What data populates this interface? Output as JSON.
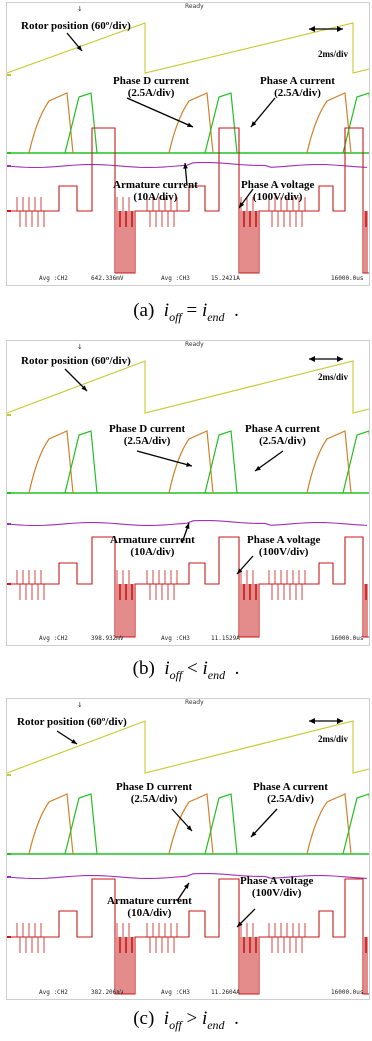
{
  "chart_data": [
    {
      "type": "line",
      "title": "",
      "labels": {
        "rotor": "Rotor position (60º/div)",
        "scale": "2ms/div",
        "phase_d_1": "Phase D current",
        "phase_d_2": "(2.5A/div)",
        "phase_a_1": "Phase A current",
        "phase_a_2": "(2.5A/div)",
        "arm_1": "Armature current",
        "arm_2": "(10A/div)",
        "va_1": "Phase A voltage",
        "va_2": "(100V/div)"
      },
      "status": {
        "ch_a": "Avg :CH2",
        "val_a": "642.336mV",
        "ch_b": "Avg :CH3",
        "val_b": "15.2421A",
        "time": "16000.0us",
        "top": "Ready"
      },
      "caption": {
        "prefix": "(a)",
        "var": "i",
        "sub1": "off",
        "op": "=",
        "sub2": "end"
      },
      "series": [
        {
          "name": "Rotor position",
          "color": "#c8c832"
        },
        {
          "name": "Phase D current",
          "color": "#d2802a"
        },
        {
          "name": "Phase A current",
          "color": "#22c022"
        },
        {
          "name": "Armature current",
          "color": "#a030b8"
        },
        {
          "name": "Phase A voltage",
          "color": "#c81818"
        }
      ]
    },
    {
      "type": "line",
      "title": "",
      "labels": {
        "rotor": "Rotor position (60º/div)",
        "scale": "2ms/div",
        "phase_d_1": "Phase D current",
        "phase_d_2": "(2.5A/div)",
        "phase_a_1": "Phase A current",
        "phase_a_2": "(2.5A/div)",
        "arm_1": "Armature current",
        "arm_2": "(10A/div)",
        "va_1": "Phase A voltage",
        "va_2": "(100V/div)"
      },
      "status": {
        "ch_a": "Avg :CH2",
        "val_a": "398.932mV",
        "ch_b": "Avg :CH3",
        "val_b": "11.1529A",
        "time": "16000.0us",
        "top": "Ready"
      },
      "caption": {
        "prefix": "(b)",
        "var": "i",
        "sub1": "off",
        "op": "<",
        "sub2": "end"
      },
      "series": [
        {
          "name": "Rotor position",
          "color": "#c8c832"
        },
        {
          "name": "Phase D current",
          "color": "#d2802a"
        },
        {
          "name": "Phase A current",
          "color": "#22c022"
        },
        {
          "name": "Armature current",
          "color": "#a030b8"
        },
        {
          "name": "Phase A voltage",
          "color": "#c81818"
        }
      ]
    },
    {
      "type": "line",
      "title": "",
      "labels": {
        "rotor": "Rotor position (60º/div)",
        "scale": "2ms/div",
        "phase_d_1": "Phase D current",
        "phase_d_2": "(2.5A/div)",
        "phase_a_1": "Phase A current",
        "phase_a_2": "(2.5A/div)",
        "arm_1": "Armature current",
        "arm_2": "(10A/div)",
        "va_1": "Phase A voltage",
        "va_2": "(100V/div)"
      },
      "status": {
        "ch_a": "Avg :CH2",
        "val_a": "382.206mV",
        "ch_b": "Avg :CH3",
        "val_b": "11.2604A",
        "time": "16000.0us",
        "top": "Ready"
      },
      "caption": {
        "prefix": "(c)",
        "var": "i",
        "sub1": "off",
        "op": ">",
        "sub2": "end"
      },
      "series": [
        {
          "name": "Rotor position",
          "color": "#c8c832"
        },
        {
          "name": "Phase D current",
          "color": "#d2802a"
        },
        {
          "name": "Phase A current",
          "color": "#22c022"
        },
        {
          "name": "Armature current",
          "color": "#a030b8"
        },
        {
          "name": "Phase A voltage",
          "color": "#c81818"
        }
      ]
    }
  ],
  "caption_suffix": "."
}
